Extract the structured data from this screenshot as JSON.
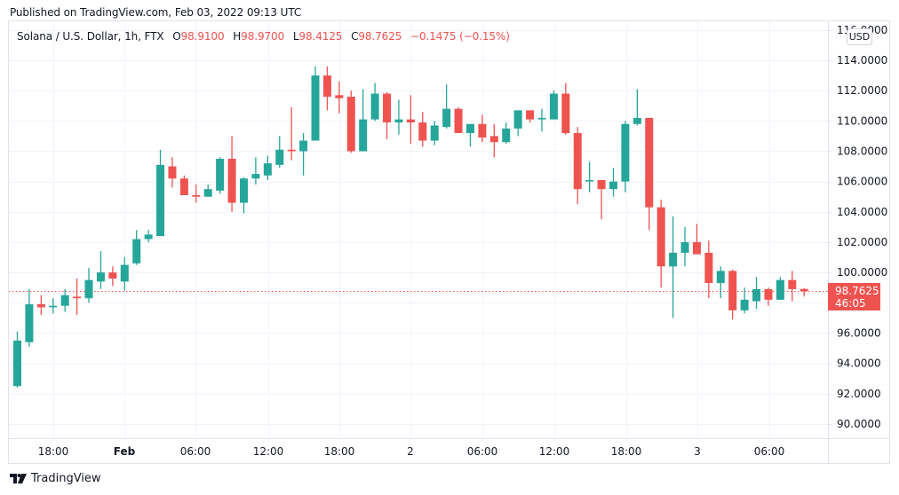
{
  "header": {
    "published": "Published on TradingView.com, Feb 03, 2022 09:13 UTC"
  },
  "legend": {
    "symbol": "Solana / U.S. Dollar, 1h, FTX",
    "open_label": "O",
    "open": "98.9100",
    "high_label": "H",
    "high": "98.9700",
    "low_label": "L",
    "low": "98.4125",
    "close_label": "C",
    "close": "98.7625",
    "change": "−0.1475 (−0.15%)"
  },
  "price_axis": {
    "currency": "USD",
    "labels": [
      "116.0000",
      "114.0000",
      "112.0000",
      "110.0000",
      "108.0000",
      "106.0000",
      "104.0000",
      "102.0000",
      "100.0000",
      "96.0000",
      "94.0000",
      "92.0000",
      "90.0000"
    ]
  },
  "last_price_tag": {
    "price": "98.7625",
    "countdown": "46:05",
    "color": "#ef5350"
  },
  "time_axis": {
    "labels": [
      {
        "text": "18:00",
        "bold": false
      },
      {
        "text": "Feb",
        "bold": true
      },
      {
        "text": "06:00",
        "bold": false
      },
      {
        "text": "12:00",
        "bold": false
      },
      {
        "text": "18:00",
        "bold": false
      },
      {
        "text": "2",
        "bold": false
      },
      {
        "text": "06:00",
        "bold": false
      },
      {
        "text": "12:00",
        "bold": false
      },
      {
        "text": "18:00",
        "bold": false
      },
      {
        "text": "3",
        "bold": false
      },
      {
        "text": "06:00",
        "bold": false
      }
    ]
  },
  "footer": {
    "brand": "TradingView"
  },
  "colors": {
    "up": "#26a69a",
    "down": "#ef5350",
    "grid": "#f0f3fa",
    "border": "#e0e3eb"
  },
  "chart_data": {
    "type": "candlestick",
    "title": "Solana / U.S. Dollar, 1h, FTX",
    "xlabel": "",
    "ylabel": "USD",
    "ylim": [
      89,
      116.2
    ],
    "grid": true,
    "x": [
      "Jan31 15:00",
      "16:00",
      "17:00",
      "18:00",
      "19:00",
      "20:00",
      "21:00",
      "22:00",
      "23:00",
      "Feb1 00:00",
      "01:00",
      "02:00",
      "03:00",
      "04:00",
      "05:00",
      "06:00",
      "07:00",
      "08:00",
      "09:00",
      "10:00",
      "11:00",
      "12:00",
      "13:00",
      "14:00",
      "15:00",
      "16:00",
      "17:00",
      "18:00",
      "19:00",
      "20:00",
      "21:00",
      "22:00",
      "23:00",
      "Feb2 00:00",
      "01:00",
      "02:00",
      "03:00",
      "04:00",
      "05:00",
      "06:00",
      "07:00",
      "08:00",
      "09:00",
      "10:00",
      "11:00",
      "12:00",
      "13:00",
      "14:00",
      "15:00",
      "16:00",
      "17:00",
      "18:00",
      "19:00",
      "20:00",
      "21:00",
      "22:00",
      "23:00",
      "Feb3 00:00",
      "01:00",
      "02:00",
      "03:00",
      "04:00",
      "05:00",
      "06:00",
      "07:00",
      "08:00",
      "09:00"
    ],
    "series": [
      {
        "name": "open",
        "values": [
          92.5,
          95.4,
          97.9,
          97.7,
          97.8,
          98.4,
          98.3,
          99.4,
          100.0,
          99.4,
          100.6,
          102.2,
          102.4,
          107.0,
          106.2,
          105.1,
          105.0,
          105.4,
          107.5,
          104.6,
          106.2,
          106.4,
          107.1,
          108.1,
          108.0,
          108.7,
          113.0,
          111.7,
          111.6,
          108.0,
          110.1,
          111.8,
          109.9,
          110.1,
          109.9,
          108.7,
          109.6,
          110.8,
          109.2,
          109.8,
          109.0,
          108.6,
          109.5,
          110.7,
          110.1,
          110.1,
          111.8,
          109.2,
          106.0,
          106.1,
          105.5,
          106.0,
          109.8,
          110.2,
          104.3,
          100.4,
          101.3,
          102.0,
          101.3,
          99.3,
          100.1,
          97.5,
          98.1,
          98.9,
          98.2,
          99.5,
          98.91
        ]
      },
      {
        "name": "high",
        "values": [
          96.1,
          98.9,
          98.5,
          98.3,
          98.9,
          99.6,
          100.3,
          101.4,
          100.4,
          101.0,
          102.8,
          102.8,
          108.1,
          107.6,
          106.4,
          105.8,
          105.8,
          107.6,
          109.0,
          106.3,
          107.6,
          107.7,
          109.0,
          110.9,
          109.2,
          113.6,
          113.6,
          112.6,
          112.0,
          112.1,
          112.5,
          111.9,
          111.4,
          111.7,
          110.6,
          110.0,
          112.4,
          110.9,
          109.8,
          110.4,
          109.8,
          109.9,
          110.7,
          110.7,
          110.8,
          112.0,
          112.5,
          109.6,
          107.3,
          106.1,
          106.9,
          110.0,
          112.1,
          110.2,
          104.8,
          103.7,
          103.0,
          103.2,
          102.1,
          100.4,
          100.2,
          99.0,
          99.7,
          99.0,
          99.7,
          100.1,
          98.97
        ]
      },
      {
        "name": "low",
        "values": [
          92.4,
          95.1,
          97.2,
          97.3,
          97.4,
          97.2,
          98.0,
          98.9,
          99.1,
          98.8,
          100.5,
          102.0,
          102.4,
          105.6,
          105.1,
          104.6,
          105.0,
          105.2,
          104.0,
          103.9,
          105.8,
          106.1,
          106.9,
          107.4,
          106.4,
          108.7,
          110.7,
          110.5,
          107.9,
          108.0,
          110.0,
          108.8,
          109.1,
          108.5,
          108.3,
          108.4,
          109.5,
          109.2,
          108.3,
          108.6,
          107.6,
          108.5,
          109.0,
          109.9,
          109.3,
          110.1,
          109.1,
          104.5,
          105.3,
          103.5,
          105.0,
          105.3,
          109.7,
          102.8,
          99.0,
          97.0,
          100.4,
          101.2,
          98.3,
          98.3,
          96.9,
          97.3,
          97.6,
          97.8,
          98.2,
          98.1,
          98.41
        ]
      },
      {
        "name": "close",
        "values": [
          95.5,
          97.9,
          97.7,
          97.8,
          98.5,
          98.3,
          99.5,
          100.0,
          99.6,
          100.5,
          102.2,
          102.5,
          107.1,
          106.2,
          105.1,
          105.0,
          105.5,
          107.5,
          104.6,
          106.2,
          106.5,
          107.2,
          108.1,
          108.0,
          108.7,
          113.0,
          111.6,
          111.5,
          108.0,
          110.1,
          111.8,
          109.9,
          110.1,
          109.9,
          108.7,
          109.7,
          110.8,
          109.2,
          109.8,
          108.9,
          108.6,
          109.5,
          110.7,
          110.1,
          110.2,
          111.8,
          109.2,
          105.5,
          106.1,
          105.5,
          106.0,
          109.8,
          110.2,
          104.3,
          100.4,
          101.3,
          102.0,
          101.2,
          99.3,
          100.1,
          97.5,
          98.2,
          98.9,
          98.2,
          99.5,
          98.9,
          98.7625
        ]
      }
    ],
    "y_ticks": [
      90,
      92,
      94,
      96,
      98,
      100,
      102,
      104,
      106,
      108,
      110,
      112,
      114,
      116
    ],
    "x_tick_labels": [
      "18:00",
      "Feb",
      "06:00",
      "12:00",
      "18:00",
      "2",
      "06:00",
      "12:00",
      "18:00",
      "3",
      "06:00"
    ],
    "last_price": 98.7625
  }
}
